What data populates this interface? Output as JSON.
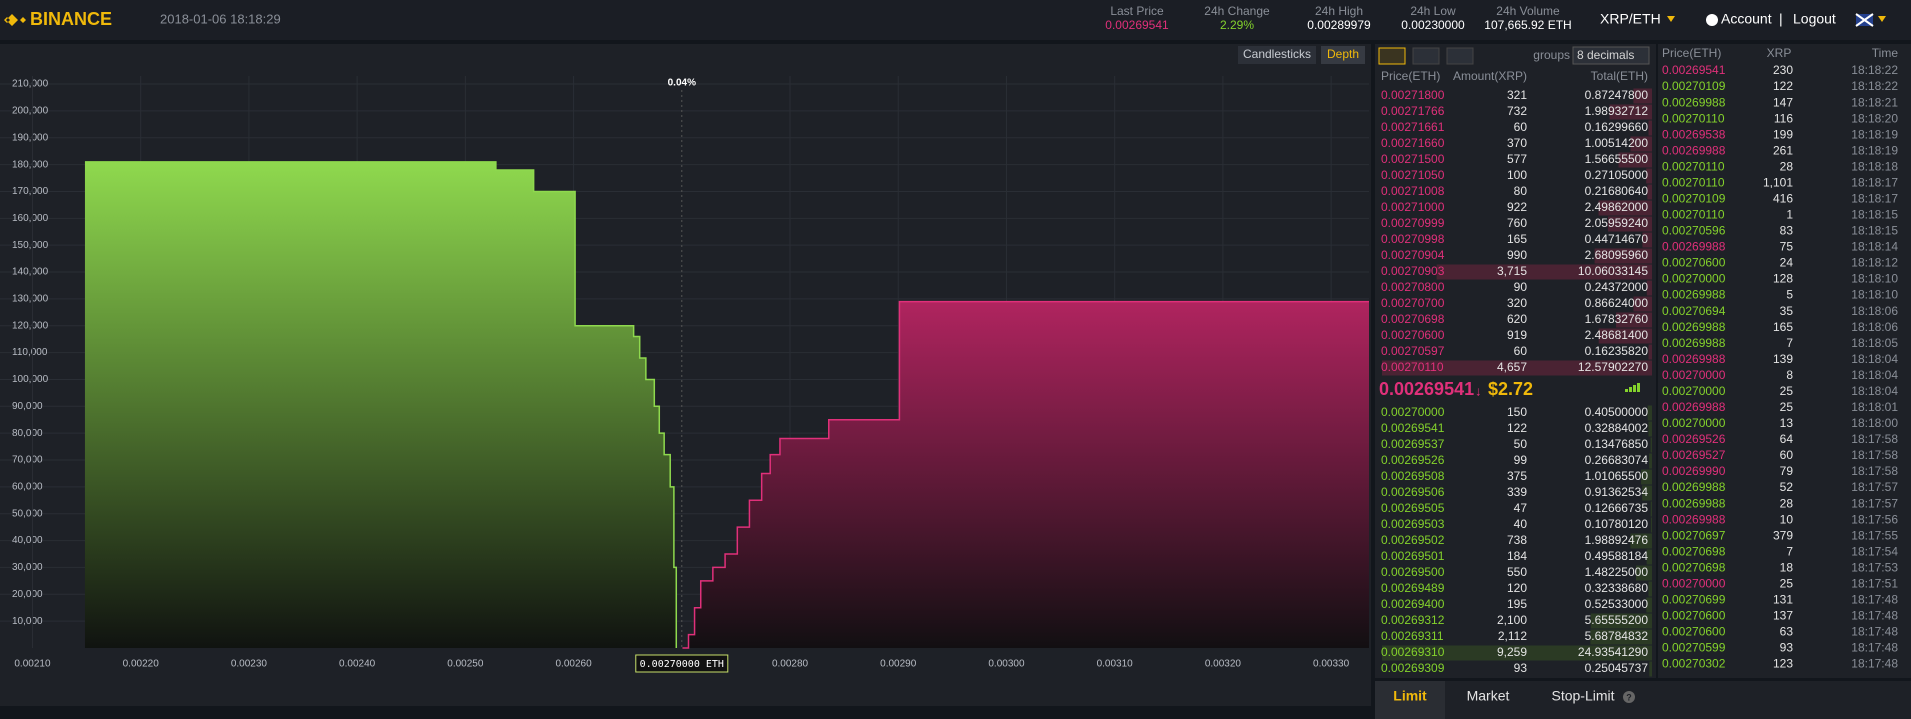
{
  "header": {
    "logo": "BINANCE",
    "datetime": "2018-01-06 18:18:29",
    "stats": [
      {
        "label": "Last Price",
        "value": "0.00269541"
      },
      {
        "label": "24h Change",
        "value": "2.29%"
      },
      {
        "label": "24h High",
        "value": "0.00289979"
      },
      {
        "label": "24h Low",
        "value": "0.00230000"
      },
      {
        "label": "24h Volume",
        "value": "107,665.92 ETH"
      }
    ],
    "pair": "XRP/ETH",
    "account": "Account",
    "separator": "|",
    "logout": "Logout"
  },
  "chart_tabs": [
    "Candlesticks",
    "Depth"
  ],
  "depth_chart": {
    "type": "depth",
    "xlim": [
      0.00207,
      0.003335
    ],
    "ylim": [
      0,
      213000
    ],
    "xticks": [
      {
        "value": 0.0021,
        "label": "0.00210"
      },
      {
        "value": 0.0022,
        "label": "0.00220"
      },
      {
        "value": 0.0023,
        "label": "0.00230"
      },
      {
        "value": 0.0024,
        "label": "0.00240"
      },
      {
        "value": 0.0025,
        "label": "0.00250"
      },
      {
        "value": 0.0026,
        "label": "0.00260"
      },
      {
        "value": 0.0028,
        "label": "0.00280"
      },
      {
        "value": 0.0029,
        "label": "0.00290"
      },
      {
        "value": 0.003,
        "label": "0.00300"
      },
      {
        "value": 0.0031,
        "label": "0.00310"
      },
      {
        "value": 0.0032,
        "label": "0.00320"
      },
      {
        "value": 0.0033,
        "label": "0.00330"
      }
    ],
    "yticks": [
      {
        "value": 10000,
        "label": "10,000"
      },
      {
        "value": 20000,
        "label": "20,000"
      },
      {
        "value": 30000,
        "label": "30,000"
      },
      {
        "value": 40000,
        "label": "40,000"
      },
      {
        "value": 50000,
        "label": "50,000"
      },
      {
        "value": 60000,
        "label": "60,000"
      },
      {
        "value": 70000,
        "label": "70,000"
      },
      {
        "value": 80000,
        "label": "80,000"
      },
      {
        "value": 90000,
        "label": "90,000"
      },
      {
        "value": 100000,
        "label": "100,000"
      },
      {
        "value": 110000,
        "label": "110,000"
      },
      {
        "value": 120000,
        "label": "120,000"
      },
      {
        "value": 130000,
        "label": "130,000"
      },
      {
        "value": 140000,
        "label": "140,000"
      },
      {
        "value": 150000,
        "label": "150,000"
      },
      {
        "value": 160000,
        "label": "160,000"
      },
      {
        "value": 170000,
        "label": "170,000"
      },
      {
        "value": 180000,
        "label": "180,000"
      },
      {
        "value": 190000,
        "label": "190,000"
      },
      {
        "value": 200000,
        "label": "200,000"
      },
      {
        "value": 210000,
        "label": "210,000"
      }
    ],
    "grid": true,
    "spread_label": "0.04%",
    "mid_price": {
      "value": 0.0027,
      "label": "0.00270000 ETH"
    },
    "series": [
      {
        "color": "#8fd94e",
        "x": [
          0.0021485,
          0.0025282,
          0.0025631,
          0.0026014,
          0.0026555,
          0.0026611,
          0.0026668,
          0.0026746,
          0.0026792,
          0.0026837,
          0.0026893,
          0.0026927,
          0.0026949
        ],
        "values": [
          181000,
          178000,
          170000,
          120000,
          116000,
          108000,
          100000,
          90000,
          80000,
          72000,
          60000,
          30000,
          0
        ]
      },
      {
        "color": "#e0307a",
        "x": [
          0.0027006,
          0.0027062,
          0.0027118,
          0.0027175,
          0.0027287,
          0.00274,
          0.0027513,
          0.0027625,
          0.0027738,
          0.0027817,
          0.0027907,
          0.0028358,
          0.0029011,
          0.003335
        ],
        "values": [
          0,
          5000,
          15000,
          25000,
          30000,
          35000,
          45000,
          55000,
          65000,
          72000,
          78000,
          85000,
          129000,
          129000
        ]
      }
    ]
  },
  "order_book": {
    "groups": "groups",
    "decimals": "8 decimals",
    "columns": [
      "Price(ETH)",
      "Amount(XRP)",
      "Total(ETH)"
    ],
    "asks": [
      [
        "0.00271800",
        "321",
        "0.87247800"
      ],
      [
        "0.00271766",
        "732",
        "1.98932712"
      ],
      [
        "0.00271661",
        "60",
        "0.16299660"
      ],
      [
        "0.00271660",
        "370",
        "1.00514200"
      ],
      [
        "0.00271500",
        "577",
        "1.56655500"
      ],
      [
        "0.00271050",
        "100",
        "0.27105000"
      ],
      [
        "0.00271008",
        "80",
        "0.21680640"
      ],
      [
        "0.00271000",
        "922",
        "2.49862000"
      ],
      [
        "0.00270999",
        "760",
        "2.05959240"
      ],
      [
        "0.00270998",
        "165",
        "0.44714670"
      ],
      [
        "0.00270904",
        "990",
        "2.68095960"
      ],
      [
        "0.00270903",
        "3,715",
        "10.06033145"
      ],
      [
        "0.00270800",
        "90",
        "0.24372000"
      ],
      [
        "0.00270700",
        "320",
        "0.86624000"
      ],
      [
        "0.00270698",
        "620",
        "1.67832760"
      ],
      [
        "0.00270600",
        "919",
        "2.48681400"
      ],
      [
        "0.00270597",
        "60",
        "0.16235820"
      ],
      [
        "0.00270110",
        "4,657",
        "12.57902270"
      ]
    ],
    "last_price": "0.00269541",
    "last_arrow": "↓",
    "last_usd": "$2.72",
    "bids": [
      [
        "0.00270000",
        "150",
        "0.40500000"
      ],
      [
        "0.00269541",
        "122",
        "0.32884002"
      ],
      [
        "0.00269537",
        "50",
        "0.13476850"
      ],
      [
        "0.00269526",
        "99",
        "0.26683074"
      ],
      [
        "0.00269508",
        "375",
        "1.01065500"
      ],
      [
        "0.00269506",
        "339",
        "0.91362534"
      ],
      [
        "0.00269505",
        "47",
        "0.12666735"
      ],
      [
        "0.00269503",
        "40",
        "0.10780120"
      ],
      [
        "0.00269502",
        "738",
        "1.98892476"
      ],
      [
        "0.00269501",
        "184",
        "0.49588184"
      ],
      [
        "0.00269500",
        "550",
        "1.48225000"
      ],
      [
        "0.00269489",
        "120",
        "0.32338680"
      ],
      [
        "0.00269400",
        "195",
        "0.52533000"
      ],
      [
        "0.00269312",
        "2,100",
        "5.65555200"
      ],
      [
        "0.00269311",
        "2,112",
        "5.68784832"
      ],
      [
        "0.00269310",
        "9,259",
        "24.93541290"
      ],
      [
        "0.00269309",
        "93",
        "0.25045737"
      ]
    ]
  },
  "trades": {
    "columns": [
      "Price(ETH)",
      "XRP",
      "Time"
    ],
    "rows": [
      {
        "price": "0.00269541",
        "amount": "230",
        "time": "18:18:22",
        "side": "sell"
      },
      {
        "price": "0.00270109",
        "amount": "122",
        "time": "18:18:22",
        "side": "buy"
      },
      {
        "price": "0.00269988",
        "amount": "147",
        "time": "18:18:21",
        "side": "buy"
      },
      {
        "price": "0.00270110",
        "amount": "116",
        "time": "18:18:20",
        "side": "buy"
      },
      {
        "price": "0.00269538",
        "amount": "199",
        "time": "18:18:19",
        "side": "sell"
      },
      {
        "price": "0.00269988",
        "amount": "261",
        "time": "18:18:19",
        "side": "sell"
      },
      {
        "price": "0.00270110",
        "amount": "28",
        "time": "18:18:18",
        "side": "buy"
      },
      {
        "price": "0.00270110",
        "amount": "1,101",
        "time": "18:18:17",
        "side": "buy"
      },
      {
        "price": "0.00270109",
        "amount": "416",
        "time": "18:18:17",
        "side": "buy"
      },
      {
        "price": "0.00270110",
        "amount": "1",
        "time": "18:18:15",
        "side": "buy"
      },
      {
        "price": "0.00270596",
        "amount": "83",
        "time": "18:18:15",
        "side": "buy"
      },
      {
        "price": "0.00269988",
        "amount": "75",
        "time": "18:18:14",
        "side": "sell"
      },
      {
        "price": "0.00270600",
        "amount": "24",
        "time": "18:18:12",
        "side": "buy"
      },
      {
        "price": "0.00270000",
        "amount": "128",
        "time": "18:18:10",
        "side": "buy"
      },
      {
        "price": "0.00269988",
        "amount": "5",
        "time": "18:18:10",
        "side": "buy"
      },
      {
        "price": "0.00270694",
        "amount": "35",
        "time": "18:18:06",
        "side": "buy"
      },
      {
        "price": "0.00269988",
        "amount": "165",
        "time": "18:18:06",
        "side": "buy"
      },
      {
        "price": "0.00269988",
        "amount": "7",
        "time": "18:18:05",
        "side": "buy"
      },
      {
        "price": "0.00269988",
        "amount": "139",
        "time": "18:18:04",
        "side": "sell"
      },
      {
        "price": "0.00270000",
        "amount": "8",
        "time": "18:18:04",
        "side": "sell"
      },
      {
        "price": "0.00270000",
        "amount": "25",
        "time": "18:18:04",
        "side": "buy"
      },
      {
        "price": "0.00269988",
        "amount": "25",
        "time": "18:18:01",
        "side": "sell"
      },
      {
        "price": "0.00270000",
        "amount": "13",
        "time": "18:18:00",
        "side": "buy"
      },
      {
        "price": "0.00269526",
        "amount": "64",
        "time": "18:17:58",
        "side": "sell"
      },
      {
        "price": "0.00269527",
        "amount": "60",
        "time": "18:17:58",
        "side": "sell"
      },
      {
        "price": "0.00269990",
        "amount": "79",
        "time": "18:17:58",
        "side": "sell"
      },
      {
        "price": "0.00269988",
        "amount": "52",
        "time": "18:17:57",
        "side": "buy"
      },
      {
        "price": "0.00269988",
        "amount": "28",
        "time": "18:17:57",
        "side": "buy"
      },
      {
        "price": "0.00269988",
        "amount": "10",
        "time": "18:17:56",
        "side": "sell"
      },
      {
        "price": "0.00270697",
        "amount": "379",
        "time": "18:17:55",
        "side": "buy"
      },
      {
        "price": "0.00270698",
        "amount": "7",
        "time": "18:17:54",
        "side": "buy"
      },
      {
        "price": "0.00270698",
        "amount": "18",
        "time": "18:17:53",
        "side": "buy"
      },
      {
        "price": "0.00270000",
        "amount": "25",
        "time": "18:17:51",
        "side": "sell"
      },
      {
        "price": "0.00270699",
        "amount": "131",
        "time": "18:17:48",
        "side": "buy"
      },
      {
        "price": "0.00270600",
        "amount": "137",
        "time": "18:17:48",
        "side": "buy"
      },
      {
        "price": "0.00270600",
        "amount": "63",
        "time": "18:17:48",
        "side": "buy"
      },
      {
        "price": "0.00270599",
        "amount": "93",
        "time": "18:17:48",
        "side": "buy"
      },
      {
        "price": "0.00270302",
        "amount": "123",
        "time": "18:17:48",
        "side": "buy"
      }
    ]
  },
  "order_tabs": [
    "Limit",
    "Market",
    "Stop-Limit"
  ],
  "help": "?"
}
